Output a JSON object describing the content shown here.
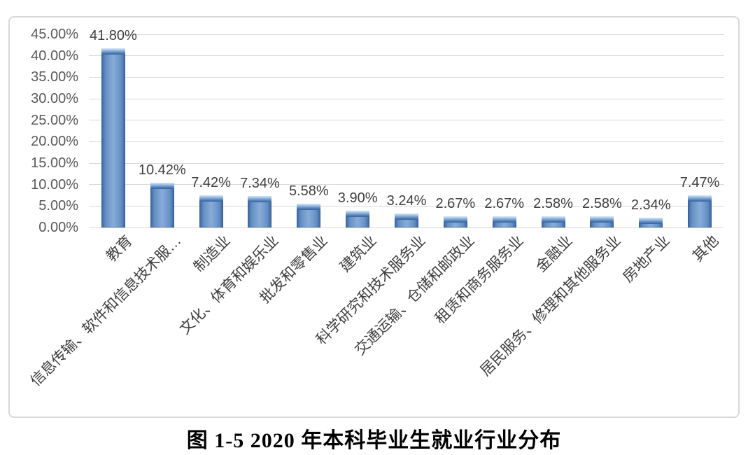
{
  "caption": "图 1-5  2020 年本科毕业生就业行业分布",
  "chart_data": {
    "type": "bar",
    "title": "图 1-5 2020 年本科毕业生就业行业分布",
    "categories": [
      "教育",
      "信息传输、软件和信息技术服…",
      "制造业",
      "文化、体育和娱乐业",
      "批发和零售业",
      "建筑业",
      "科学研究和技术服务业",
      "交通运输、仓储和邮政业",
      "租赁和商务服务业",
      "金融业",
      "居民服务、修理和其他服务业",
      "房地产业",
      "其他"
    ],
    "values": [
      41.8,
      10.42,
      7.42,
      7.34,
      5.58,
      3.9,
      3.24,
      2.67,
      2.67,
      2.58,
      2.58,
      2.34,
      7.47
    ],
    "labels": [
      "41.80%",
      "10.42%",
      "7.42%",
      "7.34%",
      "5.58%",
      "3.90%",
      "3.24%",
      "2.67%",
      "2.67%",
      "2.58%",
      "2.58%",
      "2.34%",
      "7.47%"
    ],
    "xlabel": "",
    "ylabel": "",
    "ylim": [
      0,
      45
    ],
    "ytick_step": 5,
    "yticks": [
      "45.00%",
      "40.00%",
      "35.00%",
      "30.00%",
      "25.00%",
      "20.00%",
      "15.00%",
      "10.00%",
      "5.00%",
      "0.00%"
    ],
    "grid": "horizontal",
    "legend": "none",
    "x_tick_rotation_deg": 45,
    "colors": {
      "bar_edge": "#3A639E",
      "bar_mid": "#6590C4",
      "bar_light": "#88ACD9",
      "bar_cap_highlight": "#D6E6F5",
      "gridline": "#D9D9D9",
      "chart_border": "#D8D8D8",
      "axis_text": "#595959",
      "label_text": "#3F3F3F",
      "caption_text": "#000000"
    }
  }
}
